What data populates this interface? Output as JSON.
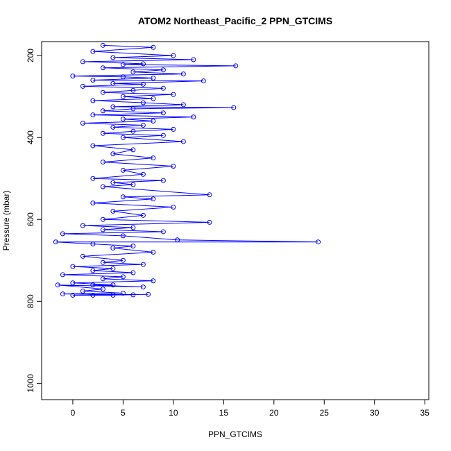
{
  "chart_data": {
    "type": "line",
    "title": "ATOM2 Northeast_Pacific_2 PPN_GTCIMS",
    "x_label": "PPN_GTCIMS",
    "y_label": "Pressure (mbar)",
    "x": [
      3,
      8,
      2,
      10,
      4,
      12,
      1,
      7,
      5,
      16.2,
      3,
      9,
      6,
      11,
      0,
      5,
      8,
      2,
      13,
      4,
      7,
      1,
      9,
      6,
      3,
      10,
      5,
      8,
      2,
      7,
      11,
      4,
      16,
      6,
      3,
      9,
      2,
      12,
      5,
      8,
      1,
      7,
      4,
      10,
      6,
      3,
      9,
      5,
      11,
      2,
      6,
      4,
      8,
      3,
      10,
      5,
      7,
      2,
      9,
      4,
      6,
      3,
      13.6,
      5,
      8,
      2,
      10,
      4,
      7,
      3,
      13.6,
      1,
      6,
      3,
      9,
      -1,
      5,
      10.4,
      24.4,
      -1.7,
      2,
      6,
      4,
      8,
      1,
      5,
      3,
      7,
      0,
      4,
      2,
      6,
      -1,
      5,
      3,
      8,
      0,
      4,
      2,
      7,
      -1.5,
      3,
      1,
      5,
      -1,
      6,
      2,
      4,
      0,
      7.5
    ],
    "series": [
      {
        "name": "PPN_GTCIMS",
        "color": "#0000ff",
        "values": [
          175,
          180,
          190,
          200,
          205,
          210,
          215,
          220,
          222,
          225,
          230,
          235,
          240,
          245,
          250,
          252,
          255,
          260,
          262,
          268,
          270,
          275,
          280,
          285,
          290,
          295,
          300,
          305,
          310,
          315,
          320,
          325,
          327,
          330,
          335,
          340,
          345,
          350,
          355,
          360,
          365,
          370,
          375,
          380,
          385,
          390,
          395,
          400,
          410,
          420,
          430,
          440,
          450,
          460,
          470,
          480,
          490,
          500,
          505,
          510,
          515,
          520,
          540,
          545,
          550,
          560,
          570,
          580,
          590,
          600,
          607,
          615,
          620,
          625,
          630,
          635,
          640,
          650,
          655,
          655,
          660,
          665,
          670,
          680,
          690,
          700,
          705,
          710,
          715,
          720,
          725,
          730,
          735,
          740,
          745,
          750,
          755,
          760,
          760,
          765,
          760,
          770,
          775,
          780,
          782,
          784,
          785,
          785,
          785,
          783
        ]
      }
    ],
    "xlim": [
      -3.1,
      35.4
    ],
    "ylim": [
      1040,
      166
    ],
    "xticks": [
      0,
      5,
      10,
      15,
      20,
      25,
      30,
      35
    ],
    "yticks": [
      200,
      400,
      600,
      800,
      1000
    ],
    "markers": true
  }
}
